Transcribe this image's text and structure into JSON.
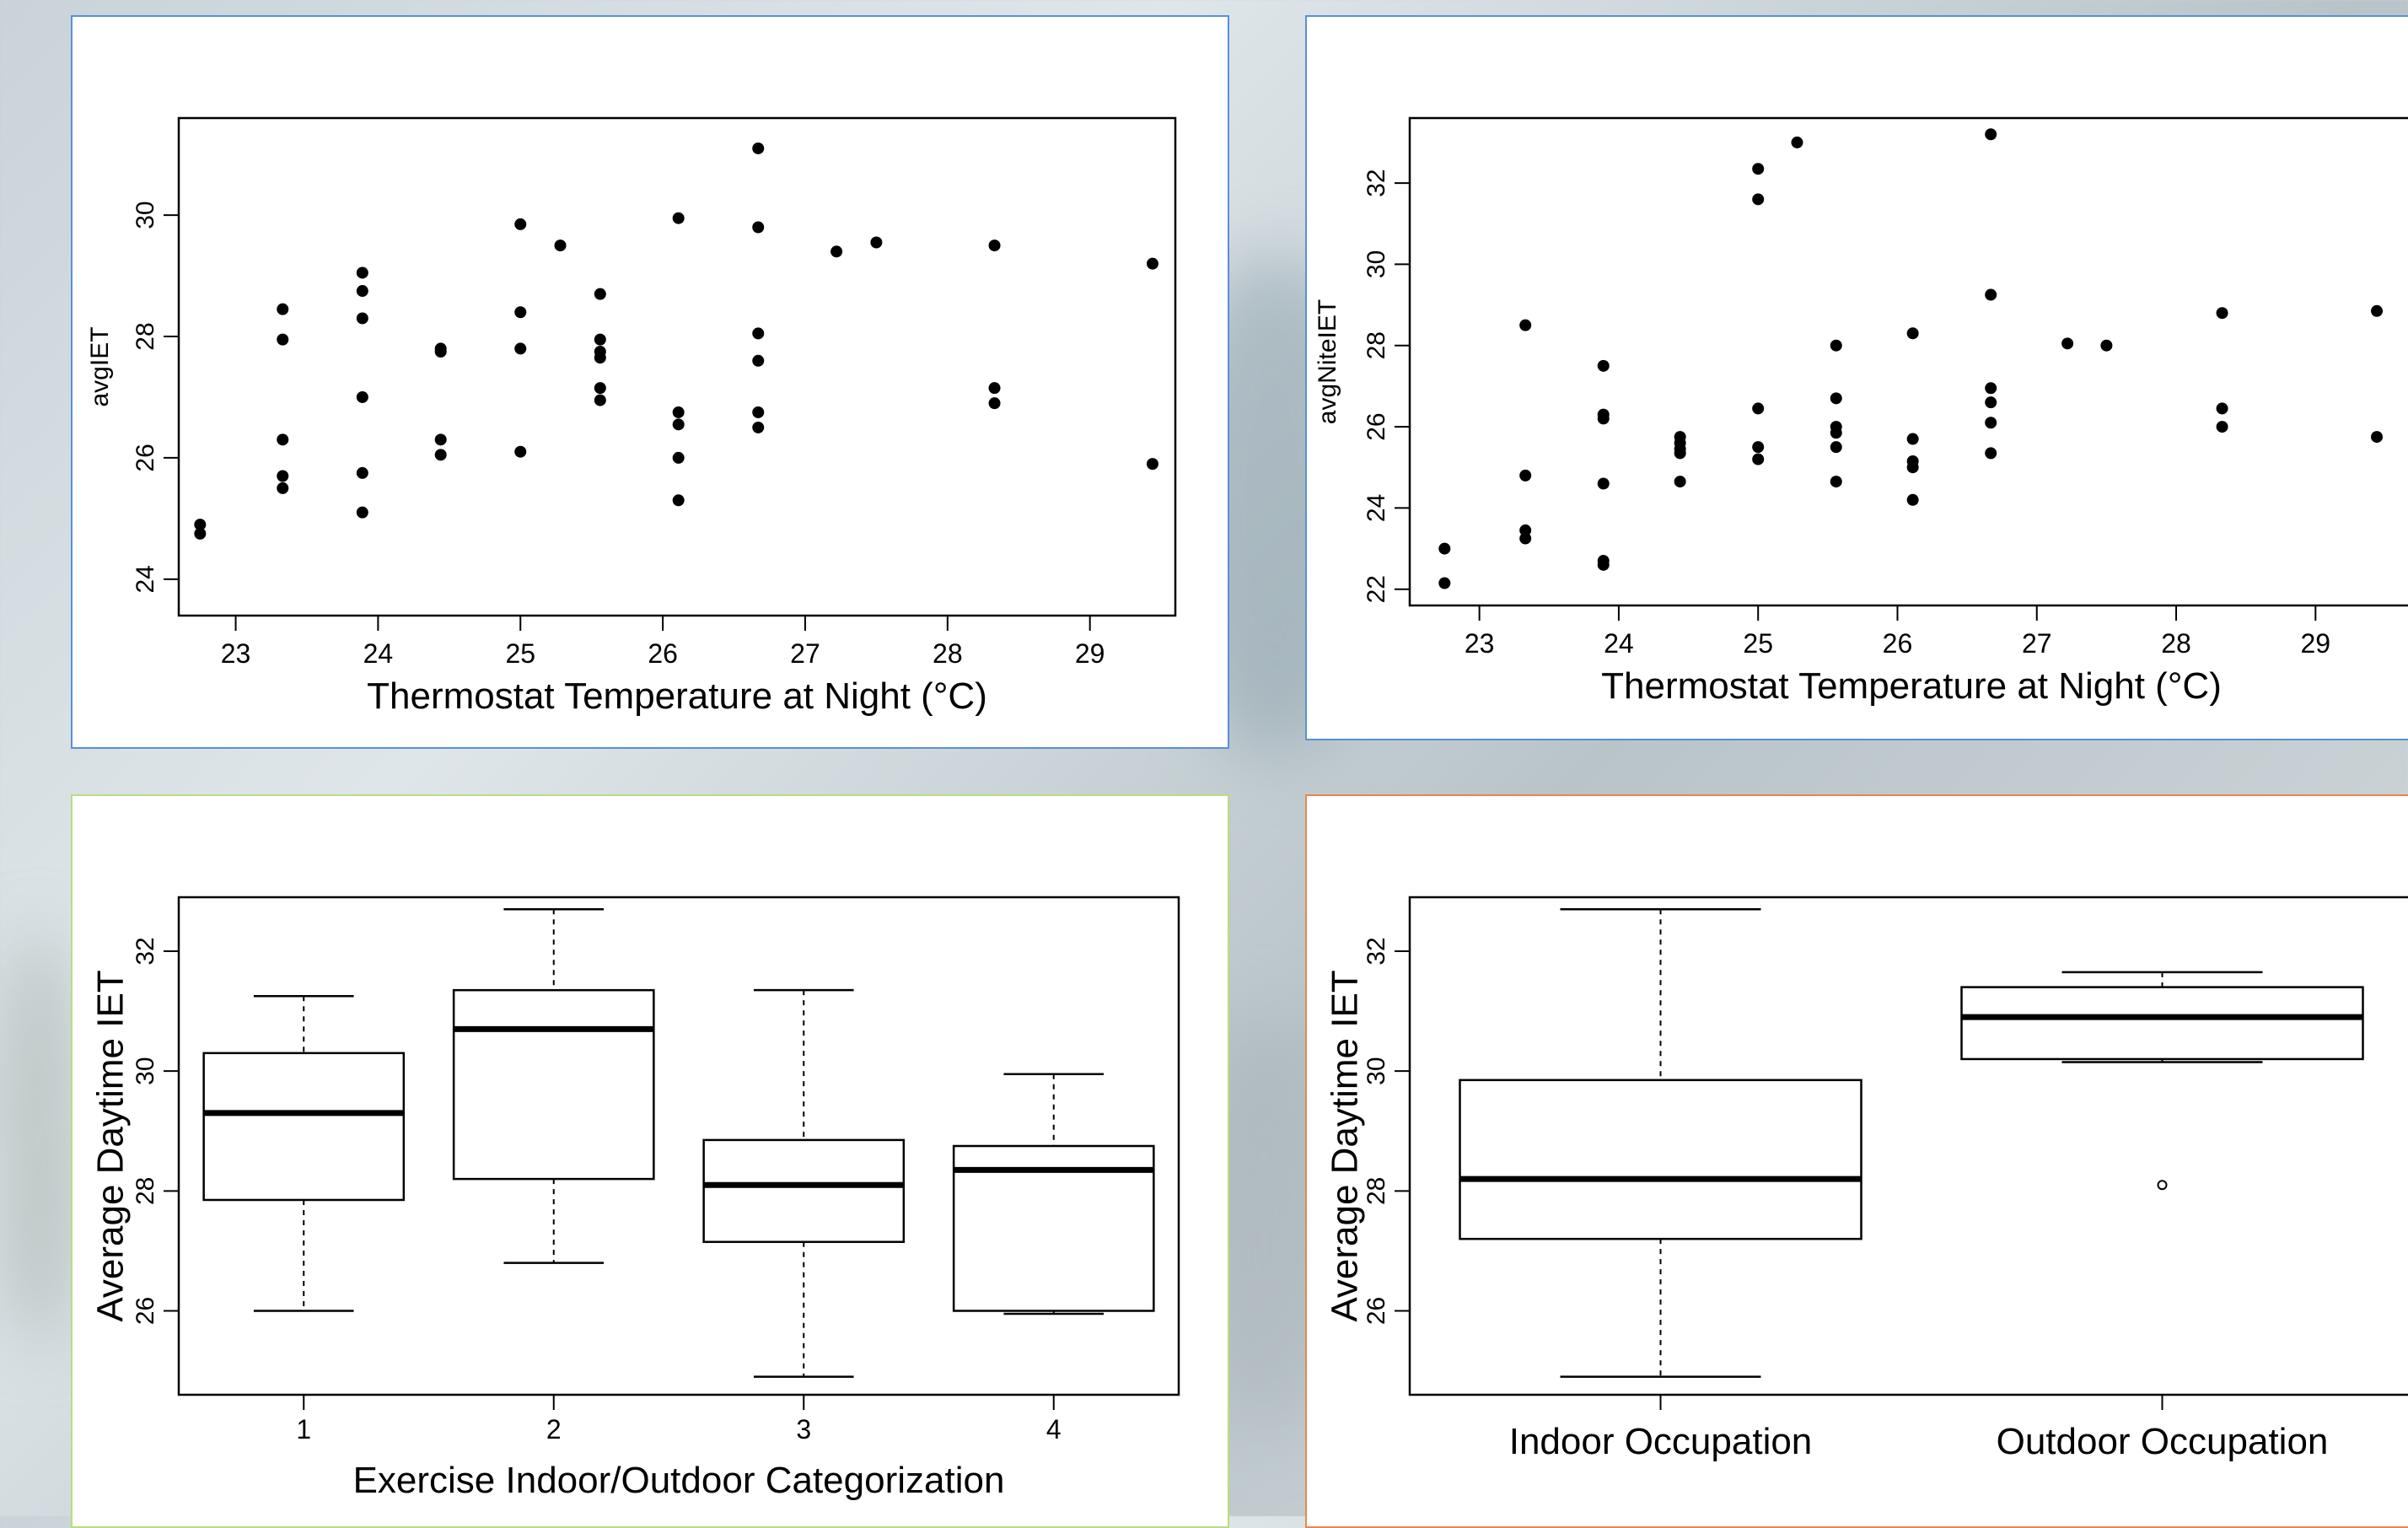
{
  "chart_data": [
    {
      "id": "scatter-day",
      "type": "scatter",
      "title": "",
      "xlabel": "Thermostat Temperature at Night (°C)",
      "ylabel": "avgIET",
      "xlim": [
        22.6,
        29.6
      ],
      "ylim": [
        23.4,
        31.6
      ],
      "xticks": [
        23,
        24,
        25,
        26,
        27,
        28,
        29
      ],
      "yticks": [
        24,
        26,
        28,
        30
      ],
      "points": [
        [
          22.75,
          24.9
        ],
        [
          22.75,
          24.75
        ],
        [
          23.33,
          28.45
        ],
        [
          23.33,
          27.95
        ],
        [
          23.33,
          26.3
        ],
        [
          23.33,
          25.7
        ],
        [
          23.33,
          25.5
        ],
        [
          23.89,
          29.05
        ],
        [
          23.89,
          28.75
        ],
        [
          23.89,
          28.3
        ],
        [
          23.89,
          27.0
        ],
        [
          23.89,
          25.75
        ],
        [
          23.89,
          25.1
        ],
        [
          24.44,
          27.8
        ],
        [
          24.44,
          27.75
        ],
        [
          24.44,
          26.3
        ],
        [
          24.44,
          26.05
        ],
        [
          25.0,
          29.85
        ],
        [
          25.0,
          28.4
        ],
        [
          25.0,
          27.8
        ],
        [
          25.0,
          26.1
        ],
        [
          25.28,
          29.5
        ],
        [
          25.56,
          28.7
        ],
        [
          25.56,
          27.95
        ],
        [
          25.56,
          27.75
        ],
        [
          25.56,
          27.65
        ],
        [
          25.56,
          27.15
        ],
        [
          25.56,
          26.95
        ],
        [
          26.11,
          29.95
        ],
        [
          26.11,
          26.75
        ],
        [
          26.11,
          26.55
        ],
        [
          26.11,
          26.0
        ],
        [
          26.11,
          25.3
        ],
        [
          26.67,
          31.1
        ],
        [
          26.67,
          29.8
        ],
        [
          26.67,
          28.05
        ],
        [
          26.67,
          27.6
        ],
        [
          26.67,
          26.75
        ],
        [
          26.67,
          26.5
        ],
        [
          27.22,
          29.4
        ],
        [
          27.5,
          29.55
        ],
        [
          28.33,
          29.5
        ],
        [
          28.33,
          27.15
        ],
        [
          28.33,
          26.9
        ],
        [
          29.44,
          29.2
        ],
        [
          29.44,
          25.9
        ]
      ]
    },
    {
      "id": "scatter-night",
      "type": "scatter",
      "title": "",
      "xlabel": "Thermostat Temperature at Night (°C)",
      "ylabel": "avgNiteIET",
      "xlim": [
        22.5,
        29.7
      ],
      "ylim": [
        21.6,
        33.6
      ],
      "xticks": [
        23,
        24,
        25,
        26,
        27,
        28,
        29
      ],
      "yticks": [
        22,
        24,
        26,
        28,
        30,
        32
      ],
      "points": [
        [
          22.75,
          23.0
        ],
        [
          22.75,
          22.15
        ],
        [
          23.33,
          28.5
        ],
        [
          23.33,
          24.8
        ],
        [
          23.33,
          23.45
        ],
        [
          23.33,
          23.25
        ],
        [
          23.89,
          27.5
        ],
        [
          23.89,
          26.3
        ],
        [
          23.89,
          26.2
        ],
        [
          23.89,
          24.6
        ],
        [
          23.89,
          22.7
        ],
        [
          23.89,
          22.6
        ],
        [
          24.44,
          25.75
        ],
        [
          24.44,
          25.6
        ],
        [
          24.44,
          25.45
        ],
        [
          24.44,
          25.35
        ],
        [
          24.44,
          24.65
        ],
        [
          25.0,
          32.35
        ],
        [
          25.0,
          31.6
        ],
        [
          25.0,
          26.45
        ],
        [
          25.0,
          25.5
        ],
        [
          25.0,
          25.2
        ],
        [
          25.28,
          33.0
        ],
        [
          25.56,
          28.0
        ],
        [
          25.56,
          26.7
        ],
        [
          25.56,
          26.0
        ],
        [
          25.56,
          25.85
        ],
        [
          25.56,
          25.5
        ],
        [
          25.56,
          24.65
        ],
        [
          26.11,
          28.3
        ],
        [
          26.11,
          25.7
        ],
        [
          26.11,
          25.15
        ],
        [
          26.11,
          25.0
        ],
        [
          26.11,
          24.2
        ],
        [
          26.67,
          33.2
        ],
        [
          26.67,
          29.25
        ],
        [
          26.67,
          26.95
        ],
        [
          26.67,
          26.6
        ],
        [
          26.67,
          26.1
        ],
        [
          26.67,
          25.35
        ],
        [
          27.22,
          28.05
        ],
        [
          27.5,
          28.0
        ],
        [
          28.33,
          28.8
        ],
        [
          28.33,
          26.45
        ],
        [
          28.33,
          26.0
        ],
        [
          29.44,
          28.85
        ],
        [
          29.44,
          25.75
        ]
      ]
    },
    {
      "id": "box-exercise",
      "type": "box",
      "title": "",
      "xlabel": "Exercise Indoor/Outdoor Categorization",
      "ylabel": "Average Daytime IET",
      "ylim": [
        24.6,
        32.9
      ],
      "yticks": [
        26,
        28,
        30,
        32
      ],
      "categories": [
        "1",
        "2",
        "3",
        "4"
      ],
      "boxes": [
        {
          "min": 26.0,
          "q1": 27.85,
          "median": 29.3,
          "q3": 30.3,
          "max": 31.25,
          "outliers": []
        },
        {
          "min": 26.8,
          "q1": 28.2,
          "median": 30.7,
          "q3": 31.35,
          "max": 32.7,
          "outliers": []
        },
        {
          "min": 24.9,
          "q1": 27.15,
          "median": 28.1,
          "q3": 28.85,
          "max": 31.35,
          "outliers": []
        },
        {
          "min": 25.95,
          "q1": 26.0,
          "median": 28.35,
          "q3": 28.75,
          "max": 29.95,
          "outliers": []
        }
      ]
    },
    {
      "id": "box-occupation",
      "type": "box",
      "title": "",
      "xlabel": "",
      "ylabel": "Average Daytime IET",
      "ylim": [
        24.6,
        32.9
      ],
      "yticks": [
        26,
        28,
        30,
        32
      ],
      "categories": [
        "Indoor Occupation",
        "Outdoor Occupation"
      ],
      "boxes": [
        {
          "min": 24.9,
          "q1": 27.2,
          "median": 28.2,
          "q3": 29.85,
          "max": 32.7,
          "outliers": []
        },
        {
          "min": 30.15,
          "q1": 30.2,
          "median": 30.9,
          "q3": 31.4,
          "max": 31.65,
          "outliers": [
            28.1
          ]
        }
      ]
    }
  ]
}
